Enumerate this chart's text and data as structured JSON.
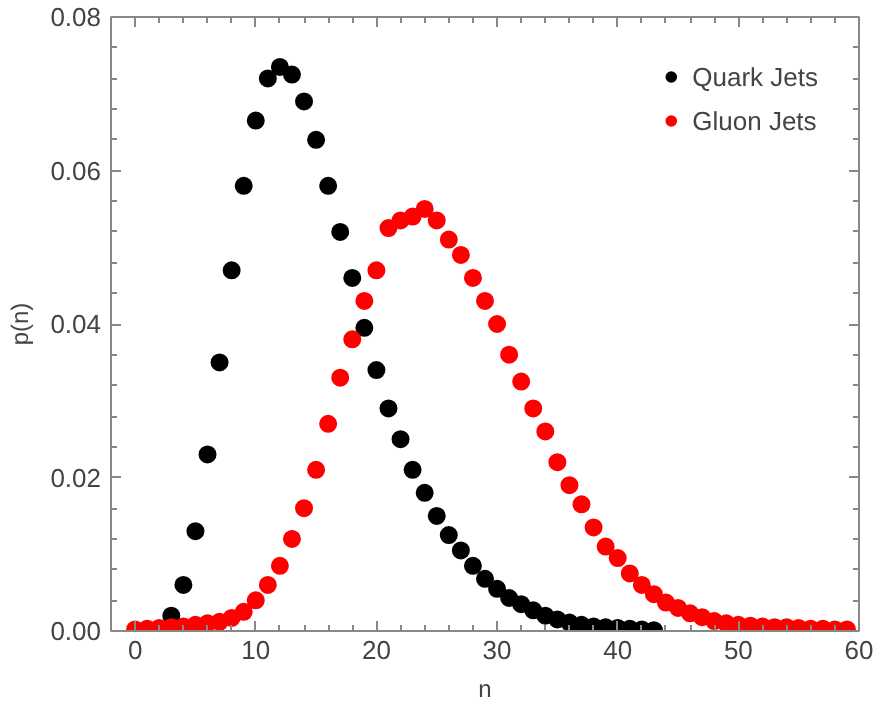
{
  "chart_data": {
    "type": "scatter",
    "xlabel": "n",
    "ylabel": "p(n)",
    "xlim": [
      -2,
      60
    ],
    "ylim": [
      0,
      0.08
    ],
    "xticks": [
      0,
      10,
      20,
      30,
      40,
      50,
      60
    ],
    "yticks": [
      {
        "value": 0,
        "label": "0.00"
      },
      {
        "value": 0.02,
        "label": "0.02"
      },
      {
        "value": 0.04,
        "label": "0.04"
      },
      {
        "value": 0.06,
        "label": "0.06"
      },
      {
        "value": 0.08,
        "label": "0.08"
      }
    ],
    "grid": false,
    "legend": "top right",
    "marker": "circle",
    "series": [
      {
        "name": "Quark Jets",
        "color": "#000000",
        "x": [
          3,
          4,
          5,
          6,
          7,
          8,
          9,
          10,
          11,
          12,
          13,
          14,
          15,
          16,
          17,
          18,
          19,
          20,
          21,
          22,
          23,
          24,
          25,
          26,
          27,
          28,
          29,
          30,
          31,
          32,
          33,
          34,
          35,
          36,
          37,
          38,
          39,
          40,
          41,
          42,
          43
        ],
        "values": [
          0.002,
          0.006,
          0.013,
          0.023,
          0.035,
          0.047,
          0.058,
          0.0665,
          0.072,
          0.0735,
          0.0725,
          0.069,
          0.064,
          0.058,
          0.052,
          0.046,
          0.0395,
          0.034,
          0.029,
          0.025,
          0.021,
          0.018,
          0.015,
          0.0125,
          0.0105,
          0.0085,
          0.0068,
          0.0055,
          0.0043,
          0.0035,
          0.0027,
          0.002,
          0.0015,
          0.0011,
          0.0008,
          0.0006,
          0.0005,
          0.0004,
          0.0003,
          0.0002,
          0.0001
        ]
      },
      {
        "name": "Gluon Jets",
        "color": "#ff0000",
        "x": [
          0,
          1,
          2,
          3,
          4,
          5,
          6,
          7,
          8,
          9,
          10,
          11,
          12,
          13,
          14,
          15,
          16,
          17,
          18,
          19,
          20,
          21,
          22,
          23,
          24,
          25,
          26,
          27,
          28,
          29,
          30,
          31,
          32,
          33,
          34,
          35,
          36,
          37,
          38,
          39,
          40,
          41,
          42,
          43,
          44,
          45,
          46,
          47,
          48,
          49,
          50,
          51,
          52,
          53,
          54,
          55,
          56,
          57,
          58,
          59
        ],
        "values": [
          0.0002,
          0.0003,
          0.0004,
          0.0005,
          0.0006,
          0.0008,
          0.001,
          0.0012,
          0.0017,
          0.0025,
          0.004,
          0.006,
          0.0085,
          0.012,
          0.016,
          0.021,
          0.027,
          0.033,
          0.038,
          0.043,
          0.047,
          0.0525,
          0.0535,
          0.054,
          0.055,
          0.0535,
          0.051,
          0.049,
          0.046,
          0.043,
          0.04,
          0.036,
          0.0325,
          0.029,
          0.026,
          0.022,
          0.019,
          0.0165,
          0.0135,
          0.011,
          0.0095,
          0.0075,
          0.006,
          0.0048,
          0.0037,
          0.003,
          0.0023,
          0.0018,
          0.0013,
          0.001,
          0.0008,
          0.0007,
          0.0006,
          0.0005,
          0.0005,
          0.0004,
          0.0003,
          0.0003,
          0.0002,
          0.0002
        ]
      }
    ]
  }
}
